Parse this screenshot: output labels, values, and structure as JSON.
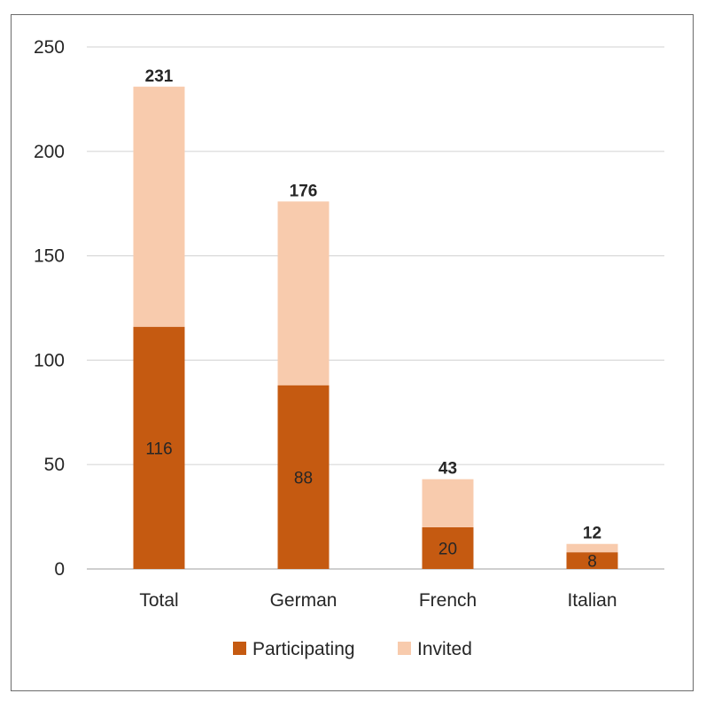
{
  "chart_data": {
    "type": "bar",
    "stacked": true,
    "categories": [
      "Total",
      "German",
      "French",
      "Italian"
    ],
    "series": [
      {
        "name": "Participating",
        "values": [
          116,
          88,
          20,
          8
        ],
        "color": "#c55a11"
      },
      {
        "name": "Invited",
        "values": [
          115,
          88,
          23,
          4
        ],
        "color": "#f8cbad"
      }
    ],
    "totals": [
      231,
      176,
      43,
      12
    ],
    "ylim": [
      0,
      250
    ],
    "yticks": [
      0,
      50,
      100,
      150,
      200,
      250
    ],
    "grid": true,
    "legend_position": "bottom",
    "title": "",
    "xlabel": "",
    "ylabel": ""
  }
}
